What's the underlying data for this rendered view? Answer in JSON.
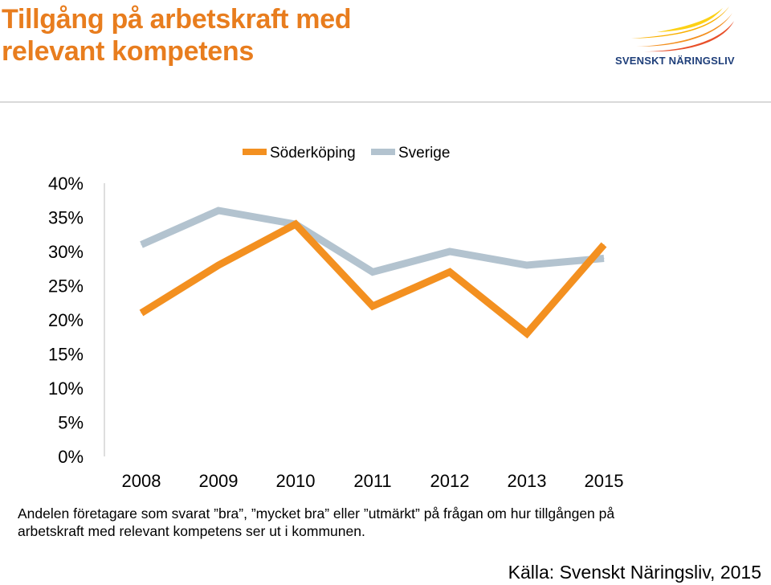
{
  "header": {
    "title_line1": "Tillgång på arbetskraft med",
    "title_line2": "relevant kompetens",
    "logo_text": "SVENSKT NÄRINGSLIV",
    "accent_color": "#e87d1e",
    "logo_text_color": "#1f3f7a"
  },
  "chart_data": {
    "type": "line",
    "categories": [
      "2008",
      "2009",
      "2010",
      "2011",
      "2012",
      "2013",
      "2015"
    ],
    "series": [
      {
        "name": "Söderköping",
        "color": "#f39020",
        "values": [
          21,
          28,
          34,
          22,
          27,
          18,
          31
        ]
      },
      {
        "name": "Sverige",
        "color": "#b3c3cf",
        "values": [
          31,
          36,
          34,
          27,
          30,
          28,
          29
        ]
      }
    ],
    "ylim": [
      0,
      40
    ],
    "yticks": [
      "0%",
      "5%",
      "10%",
      "15%",
      "20%",
      "25%",
      "30%",
      "35%",
      "40%"
    ],
    "legend_position": "top",
    "grid": false
  },
  "caption": {
    "line1": "Andelen företagare som svarat ”bra”, ”mycket bra” eller ”utmärkt” på frågan om hur tillgången på",
    "line2": "arbetskraft med relevant kompetens ser ut i kommunen."
  },
  "source": "Källa: Svenskt Näringsliv, 2015"
}
